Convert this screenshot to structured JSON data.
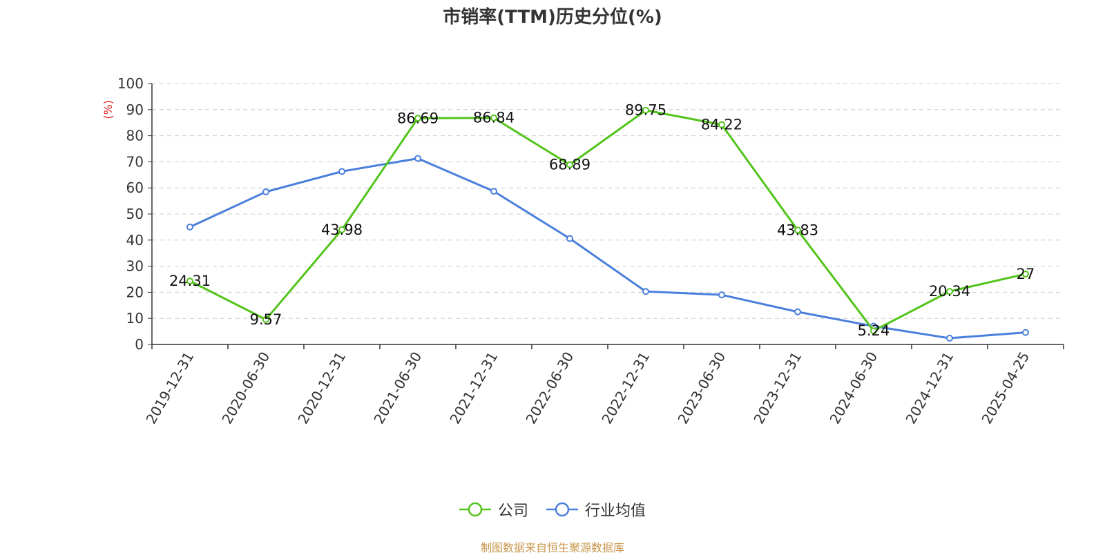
{
  "chart_data": {
    "type": "line",
    "title": "市销率(TTM)历史分位(%)",
    "ylabel": "(%)",
    "xlabel": "",
    "ylim": [
      0,
      100
    ],
    "yticks": [
      0,
      10,
      20,
      30,
      40,
      50,
      60,
      70,
      80,
      90,
      100
    ],
    "grid": true,
    "legend_position": "bottom",
    "categories": [
      "2019-12-31",
      "2020-06-30",
      "2020-12-31",
      "2021-06-30",
      "2021-12-31",
      "2022-06-30",
      "2022-12-31",
      "2023-06-30",
      "2023-12-31",
      "2024-06-30",
      "2024-12-31",
      "2025-04-25"
    ],
    "series": [
      {
        "name": "公司",
        "color": "#52c41a",
        "values": [
          24.31,
          9.57,
          43.98,
          86.69,
          86.84,
          68.89,
          89.75,
          84.22,
          43.83,
          5.24,
          20.34,
          27
        ],
        "labels": [
          "24.31",
          "9.57",
          "43.98",
          "86.69",
          "86.84",
          "68.89",
          "89.75",
          "84.22",
          "43.83",
          "5.24",
          "20.34",
          "27"
        ]
      },
      {
        "name": "行业均值",
        "color": "#4a7fdc",
        "values": [
          45.0,
          58.5,
          66.3,
          71.3,
          58.7,
          40.6,
          20.3,
          19.0,
          12.5,
          7.0,
          2.4,
          4.6
        ]
      }
    ],
    "source_note": "制图数据来自恒生聚源数据库"
  }
}
